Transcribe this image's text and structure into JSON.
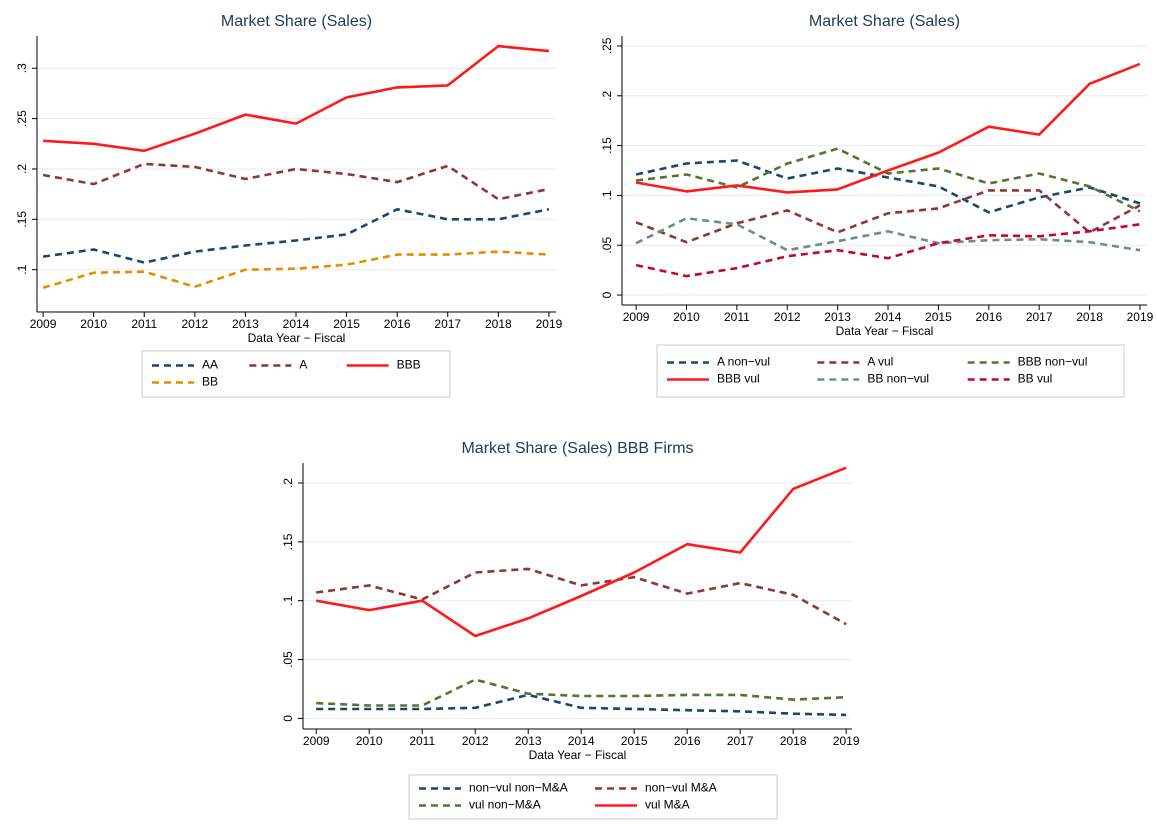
{
  "chart_data": [
    {
      "type": "line",
      "title": "Market Share (Sales)",
      "x_label": "Data Year − Fiscal",
      "x": [
        2009,
        2010,
        2011,
        2012,
        2013,
        2014,
        2015,
        2016,
        2017,
        2018,
        2019
      ],
      "xlim": [
        2008.88,
        2019.14
      ],
      "ylim": [
        0.058,
        0.332
      ],
      "yticks": [
        {
          "value": 0.1,
          "label": ".1"
        },
        {
          "value": 0.15,
          "label": ".15"
        },
        {
          "value": 0.2,
          "label": ".2"
        },
        {
          "value": 0.25,
          "label": ".25"
        },
        {
          "value": 0.3,
          "label": ".3"
        }
      ],
      "grid": true,
      "legend": "bottom",
      "legend_columns": 3,
      "series": [
        {
          "name": "AA",
          "color": "#1a476f",
          "style": "dashed",
          "values": [
            0.113,
            0.12,
            0.107,
            0.118,
            0.124,
            0.129,
            0.135,
            0.16,
            0.15,
            0.15,
            0.16
          ]
        },
        {
          "name": "A",
          "color": "#90353b",
          "style": "dashed",
          "values": [
            0.194,
            0.185,
            0.205,
            0.202,
            0.19,
            0.2,
            0.195,
            0.187,
            0.203,
            0.17,
            0.18
          ]
        },
        {
          "name": "BBB",
          "color": "#ff1a1a",
          "style": "solid",
          "values": [
            0.228,
            0.225,
            0.218,
            0.235,
            0.254,
            0.245,
            0.271,
            0.281,
            0.283,
            0.322,
            0.317
          ]
        },
        {
          "name": "BB",
          "color": "#e98b00",
          "style": "dashed",
          "values": [
            0.082,
            0.097,
            0.098,
            0.083,
            0.1,
            0.101,
            0.105,
            0.115,
            0.115,
            0.118,
            0.115
          ]
        }
      ]
    },
    {
      "type": "line",
      "title": "Market Share (Sales)",
      "x_label": "Data Year − Fiscal",
      "x": [
        2009,
        2010,
        2011,
        2012,
        2013,
        2014,
        2015,
        2016,
        2017,
        2018,
        2019
      ],
      "xlim": [
        2008.72,
        2019.14
      ],
      "ylim": [
        -0.01,
        0.26
      ],
      "yticks": [
        0,
        {
          "value": 0.05,
          "label": ".05"
        },
        {
          "value": 0.1,
          "label": ".1"
        },
        {
          "value": 0.15,
          "label": ".15"
        },
        {
          "value": 0.2,
          "label": ".2"
        },
        {
          "value": 0.25,
          "label": ".25"
        }
      ],
      "grid": true,
      "legend": "bottom",
      "legend_columns": 3,
      "series": [
        {
          "name": "A non−vul",
          "color": "#1a476f",
          "style": "dashed",
          "values": [
            0.121,
            0.132,
            0.135,
            0.117,
            0.127,
            0.118,
            0.109,
            0.083,
            0.098,
            0.108,
            0.092
          ]
        },
        {
          "name": "A vul",
          "color": "#90353b",
          "style": "dashed",
          "values": [
            0.073,
            0.053,
            0.072,
            0.085,
            0.063,
            0.082,
            0.087,
            0.105,
            0.105,
            0.063,
            0.09
          ]
        },
        {
          "name": "BBB non−vul",
          "color": "#55752f",
          "style": "dashed",
          "values": [
            0.115,
            0.121,
            0.108,
            0.132,
            0.147,
            0.122,
            0.127,
            0.112,
            0.122,
            0.109,
            0.084
          ]
        },
        {
          "name": "BBB vul",
          "color": "#ff1a1a",
          "style": "solid",
          "values": [
            0.113,
            0.104,
            0.11,
            0.103,
            0.106,
            0.125,
            0.143,
            0.169,
            0.161,
            0.212,
            0.232
          ]
        },
        {
          "name": "BB non−vul",
          "color": "#6e8e84",
          "style": "dashed",
          "values": [
            0.052,
            0.077,
            0.071,
            0.045,
            0.054,
            0.064,
            0.052,
            0.055,
            0.056,
            0.053,
            0.045
          ]
        },
        {
          "name": "BB vul",
          "color": "#c10534",
          "style": "dashed",
          "values": [
            0.03,
            0.019,
            0.027,
            0.039,
            0.045,
            0.037,
            0.052,
            0.06,
            0.059,
            0.064,
            0.071
          ]
        }
      ]
    },
    {
      "type": "line",
      "title": "Market Share (Sales) BBB Firms",
      "x_label": "Data Year − Fiscal",
      "x": [
        2009,
        2010,
        2011,
        2012,
        2013,
        2014,
        2015,
        2016,
        2017,
        2018,
        2019
      ],
      "xlim": [
        2008.75,
        2019.11
      ],
      "ylim": [
        -0.009,
        0.217
      ],
      "yticks": [
        0,
        {
          "value": 0.05,
          "label": ".05"
        },
        {
          "value": 0.1,
          "label": ".1"
        },
        {
          "value": 0.15,
          "label": ".15"
        },
        {
          "value": 0.2,
          "label": ".2"
        }
      ],
      "grid": true,
      "legend": "bottom",
      "legend_columns": 2,
      "series": [
        {
          "name": "non−vul non−M&A",
          "color": "#1a476f",
          "style": "dashed",
          "values": [
            0.008,
            0.008,
            0.008,
            0.009,
            0.02,
            0.009,
            0.008,
            0.007,
            0.006,
            0.004,
            0.003
          ]
        },
        {
          "name": "non−vul M&A",
          "color": "#90353b",
          "style": "dashed",
          "values": [
            0.107,
            0.113,
            0.101,
            0.124,
            0.127,
            0.113,
            0.12,
            0.106,
            0.115,
            0.105,
            0.08
          ]
        },
        {
          "name": "vul non−M&A",
          "color": "#55752f",
          "style": "dashed",
          "values": [
            0.013,
            0.011,
            0.011,
            0.033,
            0.021,
            0.019,
            0.019,
            0.02,
            0.02,
            0.016,
            0.018
          ]
        },
        {
          "name": "vul M&A",
          "color": "#ff1a1a",
          "style": "solid",
          "values": [
            0.1,
            0.092,
            0.1,
            0.07,
            0.085,
            0.104,
            0.124,
            0.148,
            0.141,
            0.195,
            0.213
          ]
        }
      ]
    }
  ]
}
